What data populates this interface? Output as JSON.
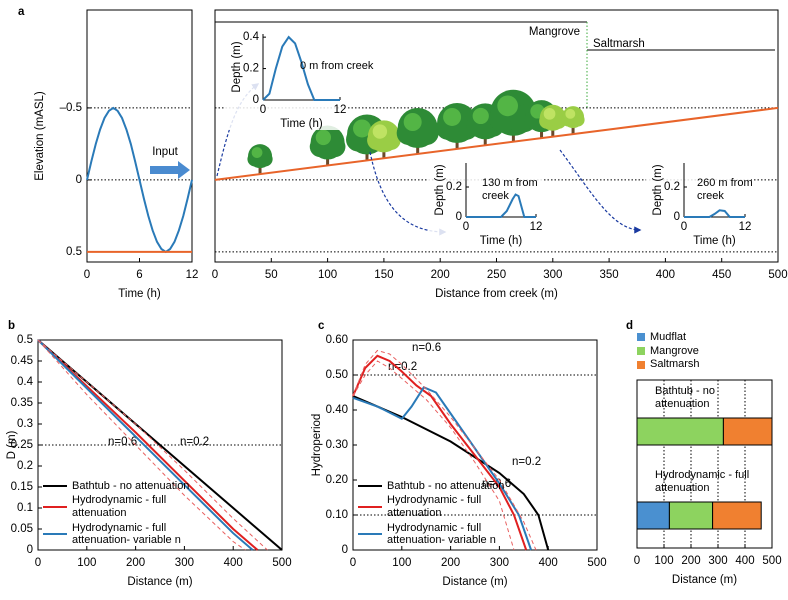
{
  "chart_data": [
    {
      "type": "line",
      "label": "a",
      "ylabel": "Elevation (mASL)",
      "xlabel": "Time (h)",
      "annotations": [
        "Input"
      ],
      "xlim": [
        0,
        12
      ],
      "xticks": [
        0,
        6,
        12
      ],
      "ylim": [
        0.57,
        -1.18
      ],
      "yticks": [
        {
          "value": -0.5,
          "label": "–0.5"
        },
        0,
        0.5
      ],
      "grid": true,
      "series": [
        {
          "color": "#2a7ab8",
          "x": [
            0,
            0.5,
            1,
            1.5,
            2,
            2.5,
            3,
            3.5,
            4,
            4.5,
            5,
            5.5,
            6,
            6.5,
            7,
            7.5,
            8,
            8.5,
            9,
            9.5,
            10,
            10.5,
            11,
            11.5,
            12
          ],
          "values": [
            0,
            -0.13,
            -0.25,
            -0.35,
            -0.43,
            -0.48,
            -0.5,
            -0.48,
            -0.43,
            -0.35,
            -0.25,
            -0.13,
            0,
            0.13,
            0.25,
            0.35,
            0.43,
            0.48,
            0.5,
            0.48,
            0.43,
            0.35,
            0.25,
            0.13,
            0
          ]
        },
        {
          "color": "#e8642a",
          "x": [
            0,
            12
          ],
          "values": [
            0.5,
            0.5
          ]
        }
      ]
    },
    {
      "type": "line",
      "xlabel": "Distance from creek (m)",
      "zones": [
        "Mangrove",
        "Saltmarsh"
      ],
      "xlim": [
        0,
        500
      ],
      "xticks": [
        0,
        50,
        100,
        150,
        200,
        250,
        300,
        350,
        400,
        450,
        500
      ],
      "ylim": [
        0.57,
        -1.18
      ],
      "hlines": [
        -0.5,
        0,
        0.5
      ],
      "series": [
        {
          "color": "#e8642a",
          "x": [
            0,
            500
          ],
          "values": [
            0,
            -0.5
          ]
        }
      ],
      "insets": [
        {
          "ylabel": "Depth (m)",
          "xlabel": "Time (h)",
          "annotation": "0 m from creek",
          "xlim": [
            0,
            12
          ],
          "xticks": [
            0,
            12
          ],
          "ylim": [
            0,
            0.42
          ],
          "yticks": [
            0,
            0.2,
            0.4
          ],
          "series": [
            {
              "color": "#2a7ab8",
              "x": [
                0,
                1,
                2,
                3,
                4,
                5,
                6,
                7,
                8,
                12
              ],
              "values": [
                0,
                0.04,
                0.2,
                0.34,
                0.4,
                0.36,
                0.24,
                0.1,
                0,
                0
              ]
            }
          ]
        },
        {
          "ylabel": "Depth (m)",
          "xlabel": "Time (h)",
          "annotation": "130 m from creek",
          "xlim": [
            0,
            12
          ],
          "xticks": [
            0,
            12
          ],
          "ylim": [
            0,
            0.36
          ],
          "yticks": [
            0,
            0.2
          ],
          "series": [
            {
              "color": "#2a7ab8",
              "x": [
                0,
                6,
                7,
                8,
                8.5,
                9,
                10,
                12
              ],
              "values": [
                0,
                0,
                0.04,
                0.12,
                0.15,
                0.14,
                0,
                0
              ]
            }
          ]
        },
        {
          "ylabel": "Depth (m)",
          "xlabel": "Time (h)",
          "annotation": "260 m from creek",
          "xlim": [
            0,
            12
          ],
          "xticks": [
            0,
            12
          ],
          "ylim": [
            0,
            0.36
          ],
          "yticks": [
            0,
            0.2
          ],
          "series": [
            {
              "color": "#2a7ab8",
              "x": [
                0,
                5,
                6,
                7,
                8,
                9,
                12
              ],
              "values": [
                0,
                0,
                0.02,
                0.045,
                0.04,
                0,
                0
              ]
            }
          ]
        }
      ]
    },
    {
      "type": "line",
      "label": "b",
      "ylabel": "D (m)",
      "xlabel": "Distance (m)",
      "annotations": [
        "n=0.6",
        "n=0.2"
      ],
      "xlim": [
        0,
        500
      ],
      "xticks": [
        0,
        100,
        200,
        300,
        400,
        500
      ],
      "ylim": [
        0,
        0.5
      ],
      "yticks": [
        0,
        0.05,
        0.1,
        0.15,
        0.2,
        0.25,
        0.3,
        0.35,
        0.4,
        0.45,
        0.5
      ],
      "hlines": [
        0.25
      ],
      "legend": "lower left",
      "series": [
        {
          "name": "Bathtub - no attenuation",
          "color": "#000000",
          "x": [
            0,
            500
          ],
          "values": [
            0.5,
            0
          ]
        },
        {
          "name": "Hydrodynamic - full attenuation",
          "color": "#e02020",
          "x": [
            0,
            100,
            200,
            300,
            400,
            450
          ],
          "values": [
            0.5,
            0.39,
            0.28,
            0.165,
            0.05,
            0
          ]
        },
        {
          "name": "Hydrodynamic - full attenuation- variable n",
          "color": "#2a7ab8",
          "x": [
            0,
            100,
            200,
            300,
            400,
            440
          ],
          "values": [
            0.5,
            0.385,
            0.27,
            0.155,
            0.04,
            0
          ]
        },
        {
          "color": "#e86060",
          "dash": true,
          "x": [
            0,
            100,
            200,
            300,
            400,
            470
          ],
          "values": [
            0.5,
            0.4,
            0.3,
            0.19,
            0.075,
            0
          ]
        },
        {
          "color": "#e86060",
          "dash": true,
          "x": [
            0,
            100,
            200,
            300,
            400,
            425
          ],
          "values": [
            0.5,
            0.37,
            0.25,
            0.13,
            0.02,
            0
          ]
        }
      ]
    },
    {
      "type": "line",
      "label": "c",
      "ylabel": "Hydroperiod",
      "xlabel": "Distance (m)",
      "annotations": [
        "n=0.6",
        "n=0.2",
        "n=0.2",
        "n=0.6"
      ],
      "xlim": [
        0,
        500
      ],
      "xticks": [
        0,
        100,
        200,
        300,
        400,
        500
      ],
      "ylim": [
        0,
        0.6
      ],
      "yticks": [
        0,
        {
          "value": 0.1,
          "label": "0.10"
        },
        {
          "value": 0.2,
          "label": "0.20"
        },
        {
          "value": 0.3,
          "label": "0.30"
        },
        {
          "value": 0.4,
          "label": "0.40"
        },
        {
          "value": 0.5,
          "label": "0.50"
        },
        {
          "value": 0.6,
          "label": "0.60"
        }
      ],
      "hlines": [
        0.5,
        0.1
      ],
      "legend": "lower left",
      "series": [
        {
          "name": "Bathtub - no attenuation",
          "color": "#000000",
          "x": [
            0,
            100,
            200,
            300,
            350,
            380,
            400
          ],
          "values": [
            0.44,
            0.38,
            0.31,
            0.22,
            0.16,
            0.1,
            0
          ]
        },
        {
          "name": "Hydrodynamic - full attenuation",
          "color": "#e02020",
          "x": [
            0,
            25,
            50,
            75,
            100,
            130,
            160,
            200,
            250,
            300,
            330,
            355
          ],
          "values": [
            0.44,
            0.52,
            0.555,
            0.54,
            0.51,
            0.47,
            0.44,
            0.36,
            0.27,
            0.18,
            0.1,
            0
          ]
        },
        {
          "name": "Hydrodynamic - full attenuation- variable n",
          "color": "#2a7ab8",
          "x": [
            0,
            50,
            100,
            120,
            145,
            170,
            200,
            250,
            300,
            340,
            365
          ],
          "values": [
            0.435,
            0.41,
            0.375,
            0.41,
            0.465,
            0.45,
            0.39,
            0.29,
            0.19,
            0.1,
            0
          ]
        },
        {
          "color": "#e86060",
          "dash": true,
          "x": [
            0,
            25,
            50,
            75,
            100,
            150,
            200,
            250,
            300,
            350,
            375
          ],
          "values": [
            0.44,
            0.53,
            0.57,
            0.56,
            0.53,
            0.46,
            0.38,
            0.29,
            0.2,
            0.08,
            0
          ]
        },
        {
          "color": "#e86060",
          "dash": true,
          "x": [
            0,
            25,
            50,
            75,
            100,
            150,
            200,
            250,
            300,
            330
          ],
          "values": [
            0.44,
            0.5,
            0.54,
            0.52,
            0.49,
            0.43,
            0.35,
            0.25,
            0.14,
            0
          ]
        }
      ]
    },
    {
      "type": "bar",
      "orientation": "horizontal",
      "stacked": true,
      "label": "d",
      "xlabel": "Distance (m)",
      "legend": "top",
      "categories": [
        "Bathtub - no attenuation",
        "Hydrodynamic - full attenuation"
      ],
      "xlim": [
        0,
        500
      ],
      "xticks": [
        0,
        100,
        200,
        300,
        400,
        500
      ],
      "grid": true,
      "series": [
        {
          "name": "Mudflat",
          "color": "#4a90d0",
          "values": [
            0,
            120
          ]
        },
        {
          "name": "Mangrove",
          "color": "#8dd35f",
          "values": [
            320,
            160
          ]
        },
        {
          "name": "Saltmarsh",
          "color": "#f08030",
          "values": [
            180,
            180
          ]
        }
      ]
    }
  ]
}
